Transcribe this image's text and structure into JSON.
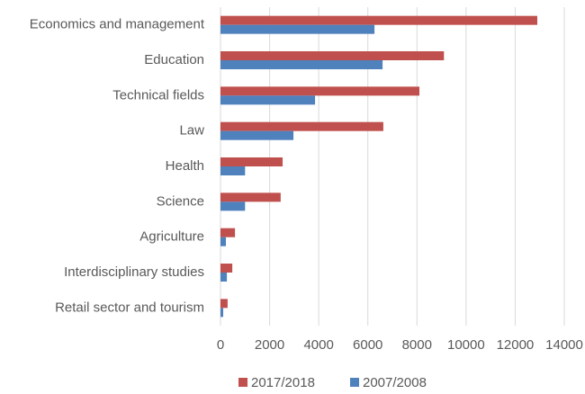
{
  "chart_data": {
    "type": "hbar",
    "categories": [
      "Economics and management",
      "Education",
      "Technical fields",
      "Law",
      "Health",
      "Science",
      "Agriculture",
      "Interdisciplinary studies",
      "Retail sector and tourism"
    ],
    "series": [
      {
        "name": "2017/2018",
        "color": "#c0504d",
        "values": [
          12900,
          9100,
          8100,
          6630,
          2530,
          2450,
          590,
          480,
          290
        ]
      },
      {
        "name": "2007/2008",
        "color": "#4f81bd",
        "values": [
          6270,
          6600,
          3850,
          2970,
          1000,
          1000,
          220,
          260,
          110
        ]
      }
    ],
    "xlim": [
      0,
      14000
    ],
    "xticks": [
      0,
      2000,
      4000,
      6000,
      8000,
      10000,
      12000,
      14000
    ],
    "grid": true,
    "legend": "bottom"
  }
}
